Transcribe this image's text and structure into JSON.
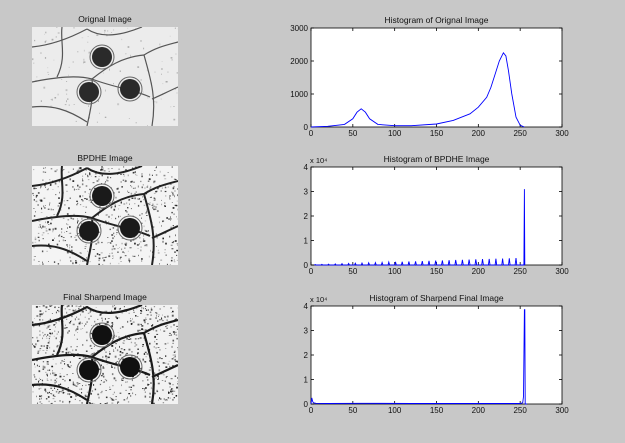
{
  "rows": [
    {
      "image_title": "Orignal Image",
      "image_style": "original",
      "chart": {
        "type": "line",
        "title": "Histogram of Orignal Image",
        "xlim": [
          0,
          300
        ],
        "ylim": [
          0,
          3000
        ],
        "exponent": "",
        "xticks": [
          "0",
          "50",
          "100",
          "150",
          "200",
          "250",
          "300"
        ],
        "yticks": [
          "0",
          "1000",
          "2000",
          "3000"
        ],
        "x": [
          0,
          20,
          40,
          50,
          55,
          60,
          65,
          70,
          80,
          100,
          120,
          150,
          170,
          190,
          200,
          210,
          215,
          220,
          225,
          230,
          233,
          236,
          240,
          245,
          250,
          255
        ],
        "y": [
          0,
          20,
          80,
          250,
          450,
          550,
          450,
          250,
          80,
          40,
          40,
          90,
          200,
          400,
          600,
          900,
          1200,
          1600,
          2000,
          2250,
          2150,
          1700,
          1000,
          300,
          50,
          0
        ]
      }
    },
    {
      "image_title": "BPDHE Image",
      "image_style": "bpdhe",
      "chart": {
        "type": "line",
        "title": "Histogram of BPDHE Image",
        "xlim": [
          0,
          300
        ],
        "ylim": [
          0,
          4
        ],
        "exponent": "x 10⁴",
        "xticks": [
          "0",
          "50",
          "100",
          "150",
          "200",
          "250",
          "300"
        ],
        "yticks": [
          "0",
          "1",
          "2",
          "3",
          "4"
        ],
        "spikes_start": 5,
        "spikes_step": 8,
        "spikes_end": 250,
        "spike_base": 0.02,
        "spike_growth": 0.0011,
        "final_spike_x": 255,
        "final_spike_y": 3.1
      }
    },
    {
      "image_title": "Final Sharpend Image",
      "image_style": "sharpend",
      "chart": {
        "type": "line",
        "title": "Histogram of Sharpend Final Image",
        "xlim": [
          0,
          300
        ],
        "ylim": [
          0,
          4
        ],
        "exponent": "x 10⁴",
        "xticks": [
          "0",
          "50",
          "100",
          "150",
          "200",
          "250",
          "300"
        ],
        "yticks": [
          "0",
          "1",
          "2",
          "3",
          "4"
        ],
        "x": [
          0,
          1,
          2,
          3,
          6,
          20,
          60,
          120,
          180,
          230,
          250,
          253,
          254,
          255,
          255.5,
          256,
          258
        ],
        "y": [
          0,
          0.25,
          0.1,
          0.05,
          0.03,
          0.02,
          0.03,
          0.02,
          0.02,
          0.02,
          0.02,
          0.05,
          0.3,
          3.85,
          3.85,
          0,
          0
        ]
      }
    }
  ]
}
